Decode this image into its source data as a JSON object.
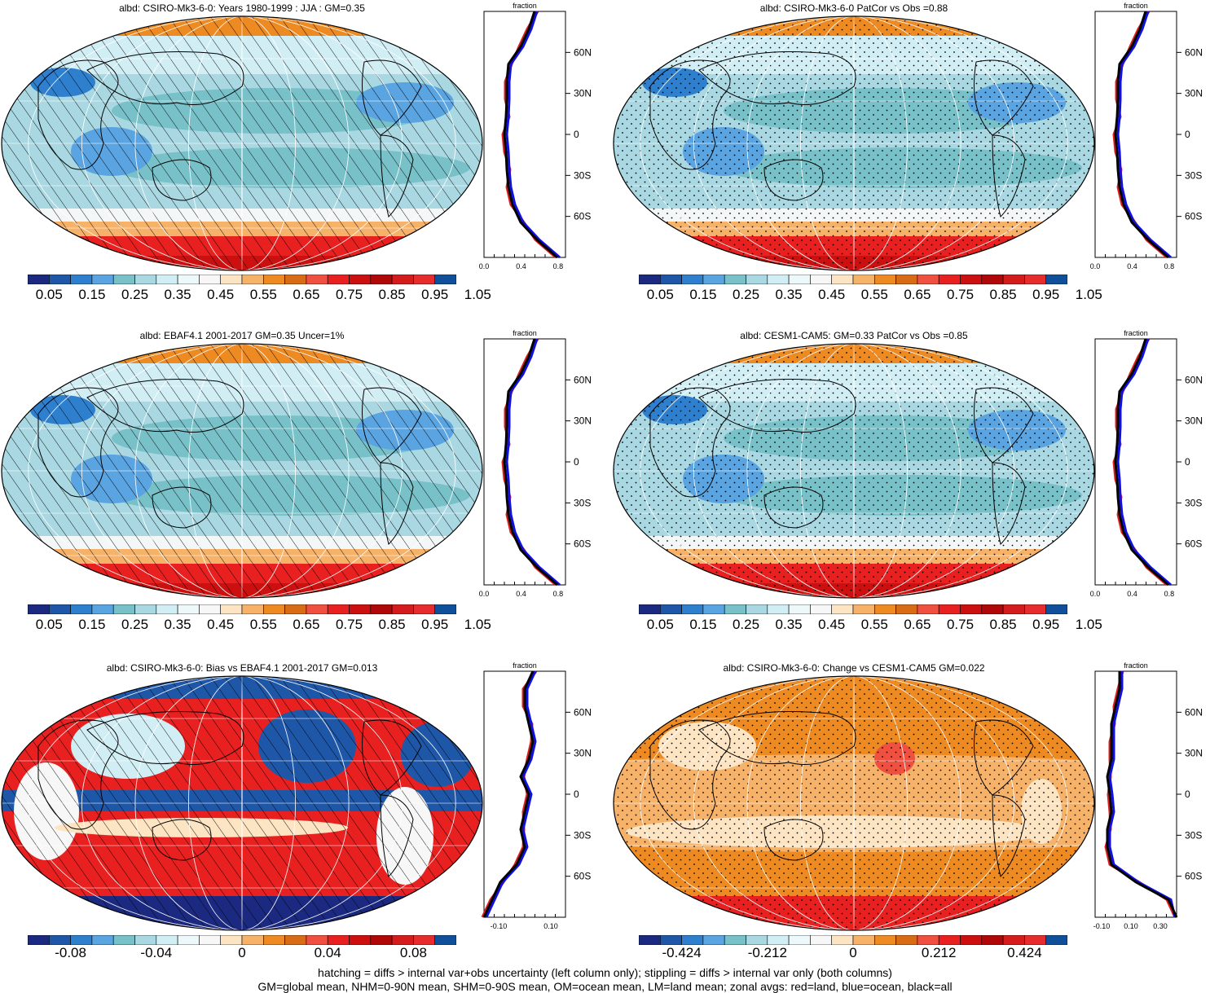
{
  "panels": [
    {
      "id": "p1",
      "title": "albd: CSIRO-Mk3-6-0: Years 1980-1999 : JJA : GM=0.35",
      "palette": "seq",
      "overlay": "hatch",
      "cbar_labels": [
        "0.05",
        "0.15",
        "0.25",
        "0.35",
        "0.45",
        "0.55",
        "0.65",
        "0.75",
        "0.85",
        "0.95",
        "1.05"
      ],
      "zonal": {
        "header": "fraction",
        "xticks": [
          "0.0",
          "0.4",
          "0.8"
        ],
        "yticks": [
          "60N",
          "30N",
          "0",
          "30S",
          "60S"
        ]
      }
    },
    {
      "id": "p2",
      "title": "albd: CSIRO-Mk3-6-0 PatCor vs Obs =0.88",
      "palette": "seq",
      "overlay": "stipple",
      "cbar_labels": [
        "0.05",
        "0.15",
        "0.25",
        "0.35",
        "0.45",
        "0.55",
        "0.65",
        "0.75",
        "0.85",
        "0.95",
        "1.05"
      ],
      "zonal": {
        "header": "fraction",
        "xticks": [
          "0.0",
          "0.4",
          "0.8"
        ],
        "yticks": [
          "60N",
          "30N",
          "0",
          "30S",
          "60S"
        ]
      }
    },
    {
      "id": "p3",
      "title": "albd: EBAF4.1 2001-2017 GM=0.35 Uncer=1%",
      "palette": "seq",
      "overlay": "hatch",
      "cbar_labels": [
        "0.05",
        "0.15",
        "0.25",
        "0.35",
        "0.45",
        "0.55",
        "0.65",
        "0.75",
        "0.85",
        "0.95",
        "1.05"
      ],
      "zonal": {
        "header": "fraction",
        "xticks": [
          "0.0",
          "0.4",
          "0.8"
        ],
        "yticks": [
          "60N",
          "30N",
          "0",
          "30S",
          "60S"
        ]
      }
    },
    {
      "id": "p4",
      "title": "albd: CESM1-CAM5: GM=0.33 PatCor vs Obs =0.85",
      "palette": "seq",
      "overlay": "stipple",
      "cbar_labels": [
        "0.05",
        "0.15",
        "0.25",
        "0.35",
        "0.45",
        "0.55",
        "0.65",
        "0.75",
        "0.85",
        "0.95",
        "1.05"
      ],
      "zonal": {
        "header": "fraction",
        "xticks": [
          "0.0",
          "0.4",
          "0.8"
        ],
        "yticks": [
          "60N",
          "30N",
          "0",
          "30S",
          "60S"
        ]
      }
    },
    {
      "id": "p5",
      "title": "albd: CSIRO-Mk3-6-0: Bias vs EBAF4.1 2001-2017 GM=0.013",
      "palette": "div",
      "overlay": "hatch",
      "cbar_labels": [
        "-0.08",
        "-0.04",
        "0",
        "0.04",
        "0.08"
      ],
      "zonal": {
        "header": "fraction",
        "xticks": [
          "-0.10",
          "0.10"
        ],
        "yticks": [
          "60N",
          "30N",
          "0",
          "30S",
          "60S"
        ]
      }
    },
    {
      "id": "p6",
      "title": "albd: CSIRO-Mk3-6-0: Change vs CESM1-CAM5 GM=0.022",
      "palette": "div",
      "overlay": "stipple",
      "cbar_labels": [
        "-0.424",
        "-0.212",
        "0",
        "0.212",
        "0.424"
      ],
      "zonal": {
        "header": "fraction",
        "xticks": [
          "-0.10",
          "0.10",
          "0.30"
        ],
        "yticks": [
          "60N",
          "30N",
          "0",
          "30S",
          "60S"
        ]
      }
    }
  ],
  "palettes": {
    "seq": [
      "#1b2a80",
      "#1f57a8",
      "#2f7fcf",
      "#5aa4e2",
      "#79c1c9",
      "#a9d8e2",
      "#d2eef5",
      "#ecf8fa",
      "#f7f7f7",
      "#fde4c2",
      "#f7b26a",
      "#ee8a22",
      "#d86c16",
      "#f05040",
      "#e82020",
      "#cc1010",
      "#b00808",
      "#d41c1c",
      "#e62c2c",
      "#10509a"
    ],
    "div": [
      "#1b2a80",
      "#1f57a8",
      "#2f7fcf",
      "#5aa4e2",
      "#79c1c9",
      "#a9d8e2",
      "#d2eef5",
      "#ecf8fa",
      "#f7f7f7",
      "#fde4c2",
      "#f7b26a",
      "#ee8a22",
      "#d86c16",
      "#f05040",
      "#e82020",
      "#cc1010",
      "#b00808",
      "#d41c1c",
      "#e62c2c",
      "#10509a"
    ]
  },
  "legend_colors": {
    "land": "#e02020",
    "ocean": "#1010e0",
    "all": "#000000"
  },
  "footer": {
    "line1": "hatching = diffs > internal var+obs uncertainty (left column only); stippling = diffs > internal var only (both columns)",
    "line2": "GM=global mean, NHM=0-90N mean, SHM=0-90S mean, OM=ocean mean, LM=land mean; zonal avgs: red=land, blue=ocean, black=all"
  }
}
